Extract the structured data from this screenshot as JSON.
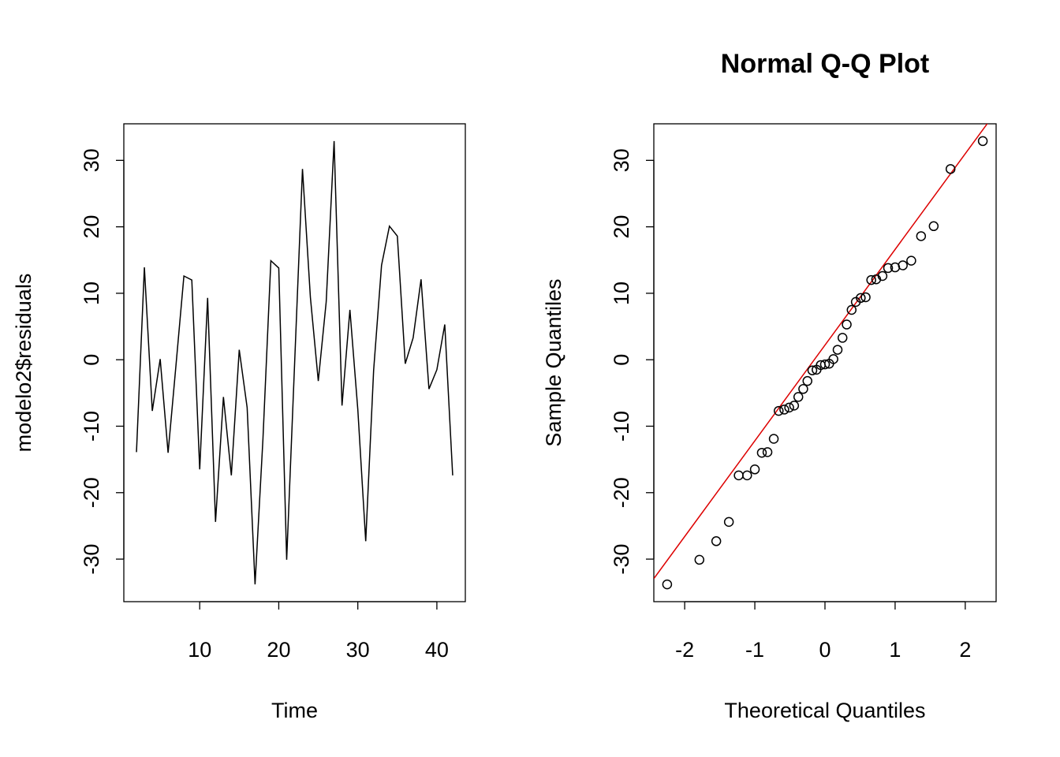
{
  "chart_data": [
    {
      "type": "line",
      "xlabel": "Time",
      "ylabel": "modelo2$residuals",
      "x": [
        2,
        3,
        4,
        5,
        6,
        7,
        8,
        9,
        10,
        11,
        12,
        13,
        14,
        15,
        16,
        17,
        18,
        19,
        20,
        21,
        22,
        23,
        24,
        25,
        26,
        27,
        28,
        29,
        30,
        31,
        32,
        33,
        34,
        35,
        36,
        37,
        38,
        39,
        40,
        41,
        42
      ],
      "values": [
        -13.9,
        13.9,
        -7.7,
        0.1,
        -14.0,
        -0.8,
        12.6,
        12.0,
        -16.5,
        9.3,
        -24.4,
        -5.6,
        -17.4,
        1.5,
        -7.2,
        -33.8,
        -11.9,
        14.9,
        13.8,
        -30.1,
        -0.7,
        28.7,
        9.4,
        -3.2,
        8.7,
        32.9,
        -6.9,
        7.5,
        -7.5,
        -27.3,
        -1.6,
        14.2,
        20.1,
        18.6,
        -0.6,
        3.3,
        12.1,
        -4.4,
        -1.5,
        5.3,
        -17.4
      ],
      "color": "#000000",
      "xlim": [
        0.4,
        43.6
      ],
      "ylim": [
        -36.4,
        35.5
      ],
      "xticks": [
        10,
        20,
        30,
        40
      ],
      "yticks": [
        -30,
        -20,
        -10,
        0,
        10,
        20,
        30
      ]
    },
    {
      "type": "scatter",
      "title": "Normal Q-Q Plot",
      "xlabel": "Theoretical Quantiles",
      "ylabel": "Sample Quantiles",
      "x": [
        -2.25,
        -1.79,
        -1.55,
        -1.37,
        -1.23,
        -1.11,
        -1.0,
        -0.9,
        -0.82,
        -0.73,
        -0.66,
        -0.58,
        -0.51,
        -0.44,
        -0.38,
        -0.31,
        -0.25,
        -0.18,
        -0.12,
        -0.06,
        0,
        0.06,
        0.12,
        0.18,
        0.25,
        0.31,
        0.38,
        0.44,
        0.51,
        0.58,
        0.66,
        0.73,
        0.82,
        0.9,
        1.0,
        1.11,
        1.23,
        1.37,
        1.55,
        1.79,
        2.25
      ],
      "values": [
        -33.8,
        -30.1,
        -27.3,
        -24.4,
        -17.4,
        -17.4,
        -16.5,
        -14.0,
        -13.9,
        -11.9,
        -7.7,
        -7.5,
        -7.2,
        -6.9,
        -5.6,
        -4.4,
        -3.2,
        -1.6,
        -1.5,
        -0.8,
        -0.7,
        -0.6,
        0.1,
        1.5,
        3.3,
        5.3,
        7.5,
        8.7,
        9.3,
        9.4,
        12.0,
        12.1,
        12.6,
        13.8,
        13.9,
        14.2,
        14.9,
        18.6,
        20.1,
        28.7,
        32.9
      ],
      "color": "#000000",
      "reference_line": {
        "slope": 14.4,
        "intercept": 2.2,
        "color": "#dd0000"
      },
      "xlim": [
        -2.44,
        2.44
      ],
      "ylim": [
        -36.4,
        35.5
      ],
      "xticks": [
        -2,
        -1,
        0,
        1,
        2
      ],
      "yticks": [
        -30,
        -20,
        -10,
        0,
        10,
        20,
        30
      ]
    }
  ]
}
